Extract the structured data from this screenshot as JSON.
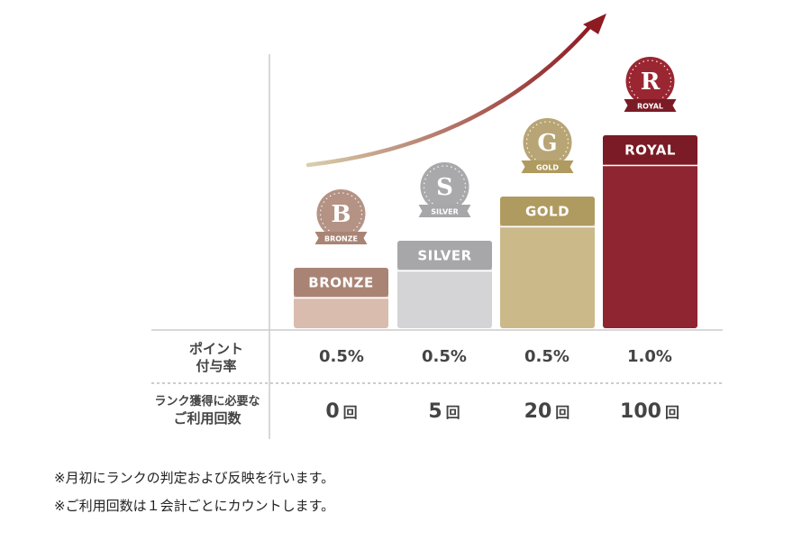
{
  "chart_data": {
    "type": "bar",
    "categories": [
      "BRONZE",
      "SILVER",
      "GOLD",
      "ROYAL"
    ],
    "values": [
      0,
      5,
      20,
      100
    ],
    "medals": [
      {
        "letter": "B",
        "ribbon": "BRONZE"
      },
      {
        "letter": "S",
        "ribbon": "SILVER"
      },
      {
        "letter": "G",
        "ribbon": "GOLD"
      },
      {
        "letter": "R",
        "ribbon": "ROYAL"
      }
    ],
    "colors": {
      "BRONZE": {
        "bar": "#d9bcad",
        "cap": "#a98474",
        "medal": "#b49385"
      },
      "SILVER": {
        "bar": "#d4d4d6",
        "cap": "#a7a7aa",
        "medal": "#a9a9ac"
      },
      "GOLD": {
        "bar": "#cbb98a",
        "cap": "#af9a60",
        "medal": "#b8a575"
      },
      "ROYAL": {
        "bar": "#8e2530",
        "cap": "#7a1b25",
        "medal": "#9a2632"
      }
    },
    "arrow_colors": [
      "#d8cfad",
      "#8e1a22"
    ]
  },
  "table": {
    "rate_header": [
      "ポイント",
      "付与率"
    ],
    "rates": [
      "0.5%",
      "0.5%",
      "0.5%",
      "1.0%"
    ],
    "count_header": [
      "ランク獲得に必要な",
      "ご利用回数"
    ],
    "counts": [
      "0",
      "5",
      "20",
      "100"
    ],
    "count_unit": "回"
  },
  "notes": [
    "※月初にランクの判定および反映を行います。",
    "※ご利用回数は１会計ごとにカウントします。"
  ]
}
